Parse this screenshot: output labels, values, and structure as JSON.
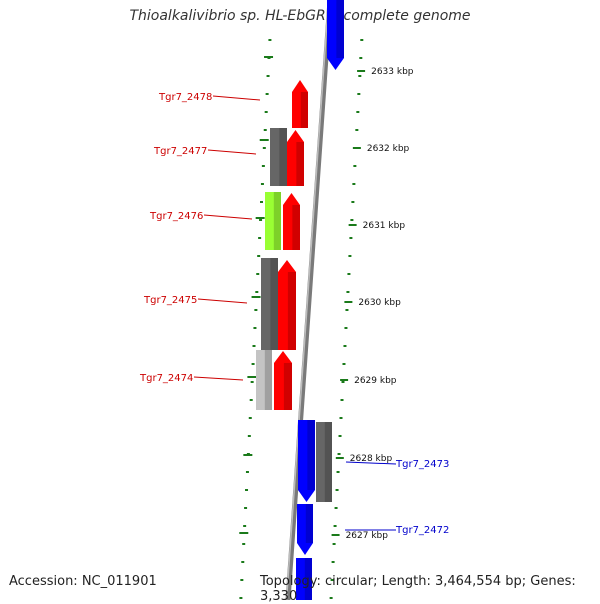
{
  "title": "Thioalkalivibrio sp. HL-EbGR7, complete genome",
  "footer": {
    "accession": "Accession: NC_011901",
    "topology": "Topology: circular; Length: 3,464,554 bp; Genes: 3,330"
  },
  "colors": {
    "backbone": "#7a7a7a",
    "tick": "#1a7a1a",
    "label_left": "#cc0000",
    "label_right": "#0000cc",
    "red": "#ff0000",
    "blue": "#0000ff",
    "dark_gray": "#666666",
    "light_gray": "#c4c4c4",
    "lime": "#99ff33"
  },
  "scale_labels": [
    "2633 kbp",
    "2632 kbp",
    "2631 kbp",
    "2630 kbp",
    "2629 kbp",
    "2628 kbp",
    "2627 kbp"
  ],
  "gene_labels": {
    "left": [
      "Tgr7_2478",
      "Tgr7_2477",
      "Tgr7_2476",
      "Tgr7_2475",
      "Tgr7_2474"
    ],
    "right": [
      "Tgr7_2473",
      "Tgr7_2472"
    ]
  }
}
